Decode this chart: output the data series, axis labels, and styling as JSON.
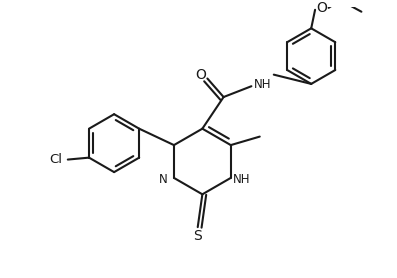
{
  "bg_color": "#ffffff",
  "line_color": "#1a1a1a",
  "line_width": 1.5,
  "fig_width": 3.97,
  "fig_height": 2.78,
  "dpi": 100,
  "xlim": [
    0,
    10
  ],
  "ylim": [
    0,
    7
  ]
}
